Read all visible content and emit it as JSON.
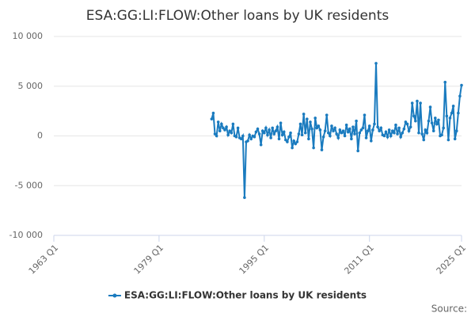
{
  "chart_data": {
    "type": "line",
    "title": "ESA:GG:LI:FLOW:Other loans by UK residents",
    "source": "Source:",
    "x": [
      "1987 Q1",
      "1987 Q2",
      "1987 Q3",
      "1987 Q4",
      "1988 Q1",
      "1988 Q2",
      "1988 Q3",
      "1988 Q4",
      "1989 Q1",
      "1989 Q2",
      "1989 Q3",
      "1989 Q4",
      "1990 Q1",
      "1990 Q2",
      "1990 Q3",
      "1990 Q4",
      "1991 Q1",
      "1991 Q2",
      "1991 Q3",
      "1991 Q4",
      "1992 Q1",
      "1992 Q2",
      "1992 Q3",
      "1992 Q4",
      "1993 Q1",
      "1993 Q2",
      "1993 Q3",
      "1993 Q4",
      "1994 Q1",
      "1994 Q2",
      "1994 Q3",
      "1994 Q4",
      "1995 Q1",
      "1995 Q2",
      "1995 Q3",
      "1995 Q4",
      "1996 Q1",
      "1996 Q2",
      "1996 Q3",
      "1996 Q4",
      "1997 Q1",
      "1997 Q2",
      "1997 Q3",
      "1997 Q4",
      "1998 Q1",
      "1998 Q2",
      "1998 Q3",
      "1998 Q4",
      "1999 Q1",
      "1999 Q2",
      "1999 Q3",
      "1999 Q4",
      "2000 Q1",
      "2000 Q2",
      "2000 Q3",
      "2000 Q4",
      "2001 Q1",
      "2001 Q2",
      "2001 Q3",
      "2001 Q4",
      "2002 Q1",
      "2002 Q2",
      "2002 Q3",
      "2002 Q4",
      "2003 Q1",
      "2003 Q2",
      "2003 Q3",
      "2003 Q4",
      "2004 Q1",
      "2004 Q2",
      "2004 Q3",
      "2004 Q4",
      "2005 Q1",
      "2005 Q2",
      "2005 Q3",
      "2005 Q4",
      "2006 Q1",
      "2006 Q2",
      "2006 Q3",
      "2006 Q4",
      "2007 Q1",
      "2007 Q2",
      "2007 Q3",
      "2007 Q4",
      "2008 Q1",
      "2008 Q2",
      "2008 Q3",
      "2008 Q4",
      "2009 Q1",
      "2009 Q2",
      "2009 Q3",
      "2009 Q4",
      "2010 Q1",
      "2010 Q2",
      "2010 Q3",
      "2010 Q4",
      "2011 Q1",
      "2011 Q2",
      "2011 Q3",
      "2011 Q4",
      "2012 Q1",
      "2012 Q2",
      "2012 Q3",
      "2012 Q4",
      "2013 Q1",
      "2013 Q2",
      "2013 Q3",
      "2013 Q4",
      "2014 Q1",
      "2014 Q2",
      "2014 Q3",
      "2014 Q4",
      "2015 Q1",
      "2015 Q2",
      "2015 Q3",
      "2015 Q4",
      "2016 Q1",
      "2016 Q2",
      "2016 Q3",
      "2016 Q4",
      "2017 Q1",
      "2017 Q2",
      "2017 Q3",
      "2017 Q4",
      "2018 Q1",
      "2018 Q2",
      "2018 Q3",
      "2018 Q4",
      "2019 Q1",
      "2019 Q2",
      "2019 Q3",
      "2019 Q4",
      "2020 Q1",
      "2020 Q2",
      "2020 Q3",
      "2020 Q4",
      "2021 Q1",
      "2021 Q2",
      "2021 Q3",
      "2021 Q4",
      "2022 Q1",
      "2022 Q2",
      "2022 Q3",
      "2022 Q4",
      "2023 Q1",
      "2023 Q2",
      "2023 Q3",
      "2023 Q4",
      "2024 Q1",
      "2024 Q2",
      "2024 Q3",
      "2024 Q4",
      "2025 Q1"
    ],
    "series": [
      {
        "name": "ESA:GG:LI:FLOW:Other loans by UK residents",
        "color": "#1a7bbf",
        "values": [
          1700,
          2300,
          200,
          0,
          1400,
          500,
          1200,
          800,
          600,
          900,
          100,
          500,
          300,
          1200,
          0,
          -100,
          800,
          -200,
          -300,
          0,
          -6200,
          -600,
          -500,
          100,
          -300,
          0,
          -100,
          400,
          700,
          200,
          -900,
          500,
          300,
          800,
          100,
          600,
          -200,
          800,
          200,
          500,
          900,
          -300,
          1300,
          100,
          400,
          -400,
          -600,
          -100,
          300,
          -1200,
          -500,
          -800,
          -600,
          200,
          1200,
          100,
          2200,
          300,
          1700,
          -300,
          1400,
          700,
          -1200,
          1800,
          800,
          1000,
          600,
          -1400,
          -100,
          500,
          2100,
          300,
          0,
          1000,
          500,
          800,
          200,
          -200,
          600,
          300,
          500,
          0,
          1100,
          400,
          700,
          -300,
          900,
          200,
          1500,
          -1500,
          300,
          600,
          800,
          2100,
          -200,
          500,
          1000,
          -500,
          600,
          1200,
          7300,
          900,
          500,
          800,
          100,
          0,
          400,
          -100,
          600,
          0,
          500,
          300,
          1100,
          200,
          800,
          -100,
          300,
          700,
          1400,
          1200,
          500,
          900,
          3300,
          2000,
          1500,
          3500,
          300,
          3300,
          200,
          -400,
          600,
          300,
          1500,
          2900,
          1300,
          500,
          1800,
          1200,
          1600,
          0,
          100,
          800,
          5400,
          2000,
          -400,
          1800,
          2300,
          3000,
          -300,
          500,
          2300,
          4000,
          5100
        ]
      }
    ],
    "xlim": [
      "1963 Q1",
      "2025 Q1"
    ],
    "xticks": [
      "1963 Q1",
      "1979 Q1",
      "1995 Q1",
      "2011 Q1",
      "2025 Q1"
    ],
    "ylim": [
      -10000,
      10000
    ],
    "yticks": [
      {
        "value": -10000,
        "label": "-10 000"
      },
      {
        "value": -5000,
        "label": "-5 000"
      },
      0,
      {
        "value": 5000,
        "label": "5 000"
      },
      {
        "value": 10000,
        "label": "10 000"
      }
    ],
    "grid": true
  }
}
